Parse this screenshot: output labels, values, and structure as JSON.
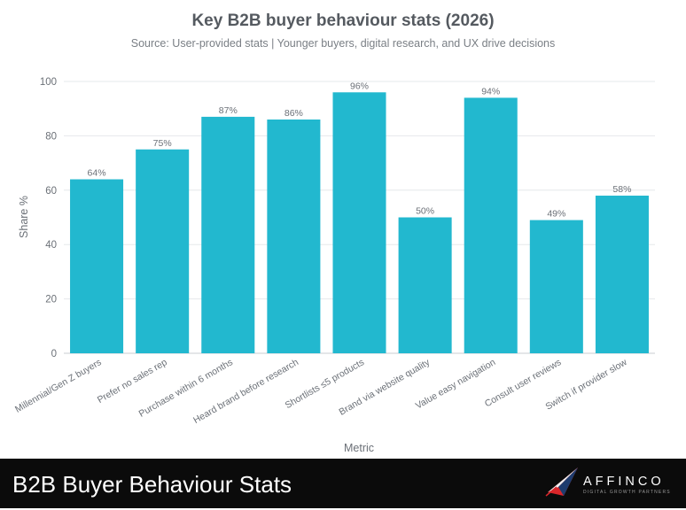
{
  "chart_data": {
    "type": "bar",
    "title": "Key B2B buyer behaviour stats (2026)",
    "subtitle": "Source: User-provided stats | Younger buyers, digital research, and UX drive decisions",
    "xlabel": "Metric",
    "ylabel": "Share %",
    "ylim": [
      0,
      100
    ],
    "yticks": [
      "0",
      "20",
      "40",
      "60",
      "80",
      "100"
    ],
    "categories": [
      "Millennial/Gen Z buyers",
      "Prefer no sales rep",
      "Purchase within 6 months",
      "Heard brand before research",
      "Shortlists ≤5 products",
      "Brand via website quality",
      "Value easy navigation",
      "Consult user reviews",
      "Switch if provider slow"
    ],
    "values": [
      64,
      75,
      87,
      86,
      96,
      50,
      94,
      49,
      58
    ],
    "labels": [
      "64%",
      "75%",
      "87%",
      "86%",
      "96%",
      "50%",
      "94%",
      "49%",
      "58%"
    ],
    "bar_color": "#22b8cf",
    "grid": true,
    "legend": "none"
  },
  "footer": {
    "title": "B2B Buyer Behaviour Stats",
    "brand": "AFFINCO",
    "tagline": "DIGITAL GROWTH PARTNERS",
    "logo_icon": "paper-plane-logo-icon"
  }
}
